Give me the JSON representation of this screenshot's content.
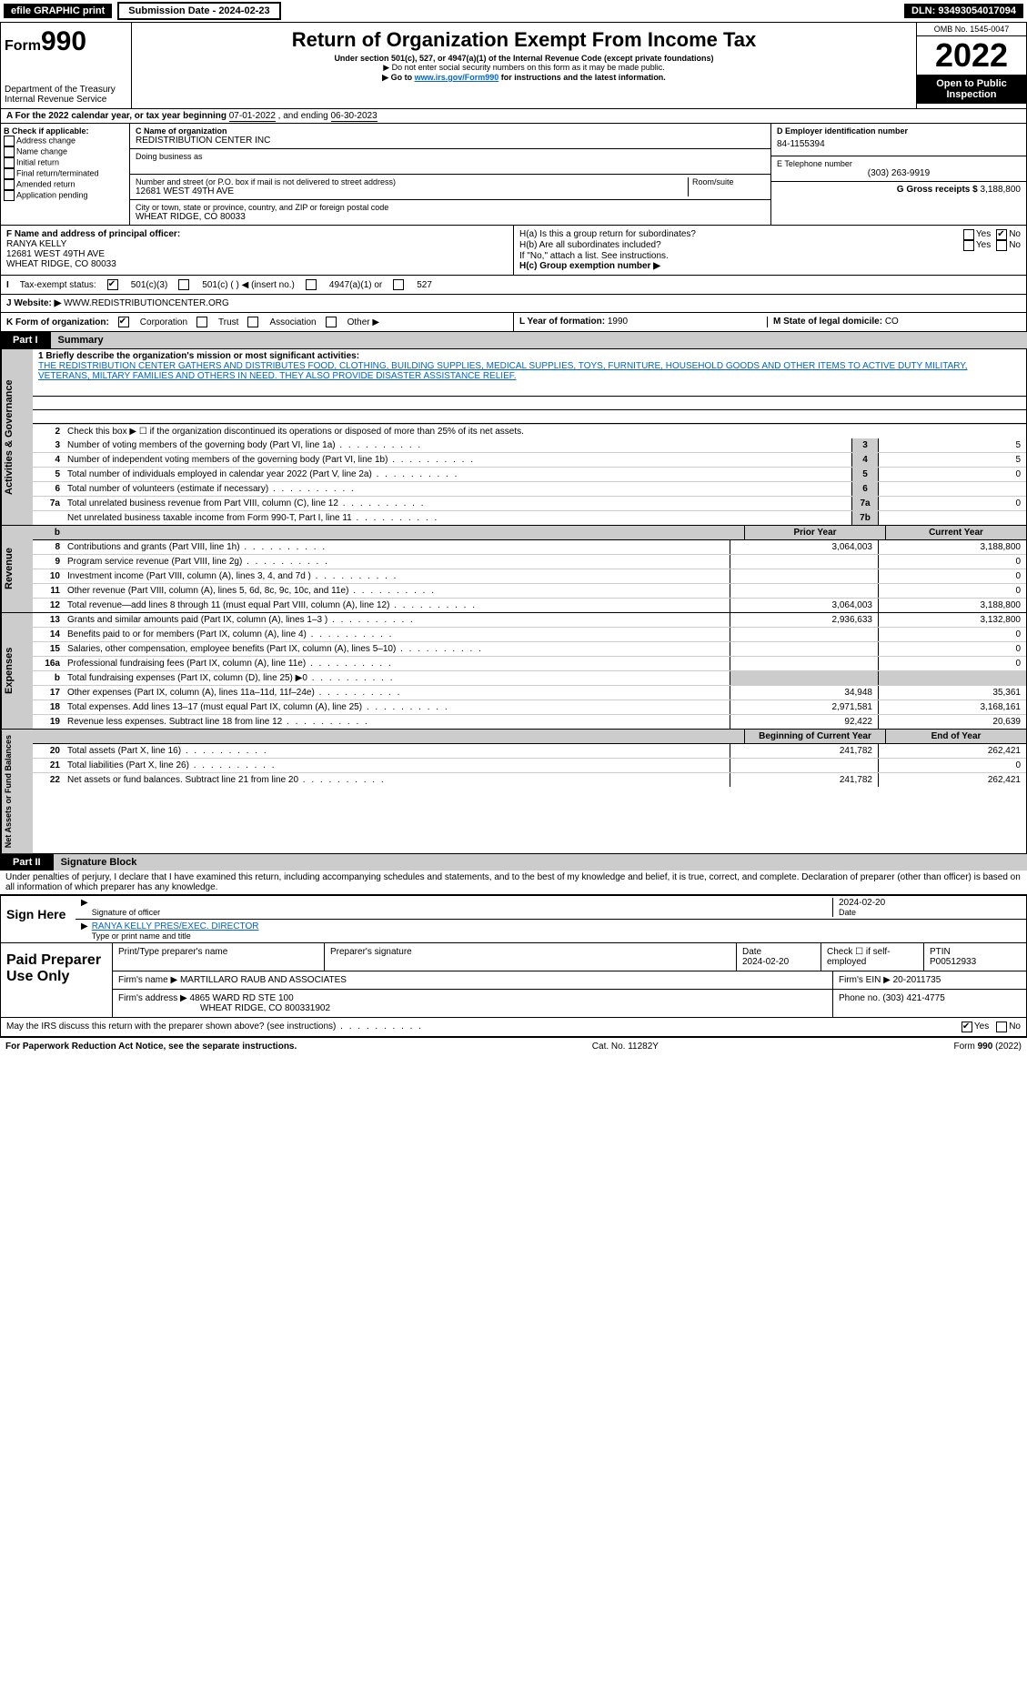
{
  "topbar": {
    "efile_label": "efile GRAPHIC print",
    "submission_label": "Submission Date - 2024-02-23",
    "dln_label": "DLN: 93493054017094"
  },
  "header": {
    "form_prefix": "Form",
    "form_number": "990",
    "dept_label": "Department of the Treasury",
    "irs_label": "Internal Revenue Service",
    "title": "Return of Organization Exempt From Income Tax",
    "subtitle": "Under section 501(c), 527, or 4947(a)(1) of the Internal Revenue Code (except private foundations)",
    "note1": "▶ Do not enter social security numbers on this form as it may be made public.",
    "note2_prefix": "▶ Go to ",
    "note2_link": "www.irs.gov/Form990",
    "note2_suffix": " for instructions and the latest information.",
    "omb": "OMB No. 1545-0047",
    "year": "2022",
    "open_public": "Open to Public Inspection"
  },
  "line_a": {
    "text_prefix": "A For the 2022 calendar year, or tax year beginning ",
    "begin": "07-01-2022",
    "mid": " , and ending ",
    "end": "06-30-2023"
  },
  "col_b": {
    "title": "B Check if applicable:",
    "items": [
      "Address change",
      "Name change",
      "Initial return",
      "Final return/terminated",
      "Amended return",
      "Application pending"
    ]
  },
  "col_c": {
    "name_label": "C Name of organization",
    "name": "REDISTRIBUTION CENTER INC",
    "dba_label": "Doing business as",
    "addr_label": "Number and street (or P.O. box if mail is not delivered to street address)",
    "room_label": "Room/suite",
    "addr": "12681 WEST 49TH AVE",
    "city_label": "City or town, state or province, country, and ZIP or foreign postal code",
    "city": "WHEAT RIDGE, CO  80033"
  },
  "col_d": {
    "ein_label": "D Employer identification number",
    "ein": "84-1155394",
    "phone_label": "E Telephone number",
    "phone": "(303) 263-9919",
    "gross_label": "G Gross receipts $",
    "gross": "3,188,800"
  },
  "fh": {
    "f_label": "F Name and address of principal officer:",
    "f_name": "RANYA KELLY",
    "f_addr1": "12681 WEST 49TH AVE",
    "f_addr2": "WHEAT RIDGE, CO  80033",
    "ha_label": "H(a) Is this a group return for subordinates?",
    "hb_label": "H(b) Are all subordinates included?",
    "h_note": "If \"No,\" attach a list. See instructions.",
    "hc_label": "H(c) Group exemption number ▶",
    "yes": "Yes",
    "no": "No"
  },
  "tax_status": {
    "label": "Tax-exempt status:",
    "c3": "501(c)(3)",
    "c_other": "501(c) (  ) ◀ (insert no.)",
    "a1": "4947(a)(1) or",
    "s527": "527"
  },
  "website": {
    "label": "J    Website: ▶",
    "value": "WWW.REDISTRIBUTIONCENTER.ORG"
  },
  "kl": {
    "k_label": "K Form of organization:",
    "k_corp": "Corporation",
    "k_trust": "Trust",
    "k_assoc": "Association",
    "k_other": "Other ▶",
    "l_label": "L Year of formation:",
    "l_val": "1990",
    "m_label": "M State of legal domicile:",
    "m_val": "CO"
  },
  "part1": {
    "tab": "Part I",
    "title": "Summary",
    "side_gov": "Activities & Governance",
    "side_rev": "Revenue",
    "side_exp": "Expenses",
    "side_net": "Net Assets or Fund Balances",
    "l1_label": "1 Briefly describe the organization's mission or most significant activities:",
    "mission": "THE REDISTRIBUTION CENTER GATHERS AND DISTRIBUTES FOOD, CLOTHING, BUILDING SUPPLIES, MEDICAL SUPPLIES, TOYS, FURNITURE, HOUSEHOLD GOODS AND OTHER ITEMS TO ACTIVE DUTY MILITARY, VETERANS, MILTARY FAMILIES AND OTHERS IN NEED. THEY ALSO PROVIDE DISASTER ASSISTANCE RELIEF.",
    "l2": "Check this box ▶ ☐ if the organization discontinued its operations or disposed of more than 25% of its net assets.",
    "gov_lines": [
      {
        "n": "3",
        "t": "Number of voting members of the governing body (Part VI, line 1a)",
        "box": "3",
        "v": "5"
      },
      {
        "n": "4",
        "t": "Number of independent voting members of the governing body (Part VI, line 1b)",
        "box": "4",
        "v": "5"
      },
      {
        "n": "5",
        "t": "Total number of individuals employed in calendar year 2022 (Part V, line 2a)",
        "box": "5",
        "v": "0"
      },
      {
        "n": "6",
        "t": "Total number of volunteers (estimate if necessary)",
        "box": "6",
        "v": ""
      },
      {
        "n": "7a",
        "t": "Total unrelated business revenue from Part VIII, column (C), line 12",
        "box": "7a",
        "v": "0"
      },
      {
        "n": "",
        "t": "Net unrelated business taxable income from Form 990-T, Part I, line 11",
        "box": "7b",
        "v": ""
      }
    ],
    "prior_hdr": "Prior Year",
    "curr_hdr": "Current Year",
    "beg_hdr": "Beginning of Current Year",
    "end_hdr": "End of Year",
    "rev_lines": [
      {
        "n": "8",
        "t": "Contributions and grants (Part VIII, line 1h)",
        "p": "3,064,003",
        "c": "3,188,800"
      },
      {
        "n": "9",
        "t": "Program service revenue (Part VIII, line 2g)",
        "p": "",
        "c": "0"
      },
      {
        "n": "10",
        "t": "Investment income (Part VIII, column (A), lines 3, 4, and 7d )",
        "p": "",
        "c": "0"
      },
      {
        "n": "11",
        "t": "Other revenue (Part VIII, column (A), lines 5, 6d, 8c, 9c, 10c, and 11e)",
        "p": "",
        "c": "0"
      },
      {
        "n": "12",
        "t": "Total revenue—add lines 8 through 11 (must equal Part VIII, column (A), line 12)",
        "p": "3,064,003",
        "c": "3,188,800"
      }
    ],
    "exp_lines": [
      {
        "n": "13",
        "t": "Grants and similar amounts paid (Part IX, column (A), lines 1–3 )",
        "p": "2,936,633",
        "c": "3,132,800"
      },
      {
        "n": "14",
        "t": "Benefits paid to or for members (Part IX, column (A), line 4)",
        "p": "",
        "c": "0"
      },
      {
        "n": "15",
        "t": "Salaries, other compensation, employee benefits (Part IX, column (A), lines 5–10)",
        "p": "",
        "c": "0"
      },
      {
        "n": "16a",
        "t": "Professional fundraising fees (Part IX, column (A), line 11e)",
        "p": "",
        "c": "0"
      },
      {
        "n": "b",
        "t": "Total fundraising expenses (Part IX, column (D), line 25) ▶0",
        "p": "",
        "c": "",
        "grey": true
      },
      {
        "n": "17",
        "t": "Other expenses (Part IX, column (A), lines 11a–11d, 11f–24e)",
        "p": "34,948",
        "c": "35,361"
      },
      {
        "n": "18",
        "t": "Total expenses. Add lines 13–17 (must equal Part IX, column (A), line 25)",
        "p": "2,971,581",
        "c": "3,168,161"
      },
      {
        "n": "19",
        "t": "Revenue less expenses. Subtract line 18 from line 12",
        "p": "92,422",
        "c": "20,639"
      }
    ],
    "net_lines": [
      {
        "n": "20",
        "t": "Total assets (Part X, line 16)",
        "p": "241,782",
        "c": "262,421"
      },
      {
        "n": "21",
        "t": "Total liabilities (Part X, line 26)",
        "p": "",
        "c": "0"
      },
      {
        "n": "22",
        "t": "Net assets or fund balances. Subtract line 21 from line 20",
        "p": "241,782",
        "c": "262,421"
      }
    ]
  },
  "part2": {
    "tab": "Part II",
    "title": "Signature Block",
    "decl": "Under penalties of perjury, I declare that I have examined this return, including accompanying schedules and statements, and to the best of my knowledge and belief, it is true, correct, and complete. Declaration of preparer (other than officer) is based on all information of which preparer has any knowledge.",
    "sign_here": "Sign Here",
    "sig_officer": "Signature of officer",
    "sig_date": "Date",
    "sig_date_val": "2024-02-20",
    "officer_name": "RANYA KELLY PRES/EXEC. DIRECTOR",
    "type_name": "Type or print name and title",
    "paid_prep": "Paid Preparer Use Only",
    "prep_name_hdr": "Print/Type preparer's name",
    "prep_sig_hdr": "Preparer's signature",
    "prep_date_hdr": "Date",
    "prep_date": "2024-02-20",
    "prep_check": "Check ☐ if self-employed",
    "ptin_hdr": "PTIN",
    "ptin": "P00512933",
    "firm_name_lbl": "Firm's name    ▶",
    "firm_name": "MARTILLARO RAUB AND ASSOCIATES",
    "firm_ein_lbl": "Firm's EIN ▶",
    "firm_ein": "20-2011735",
    "firm_addr_lbl": "Firm's address ▶",
    "firm_addr1": "4865 WARD RD STE 100",
    "firm_addr2": "WHEAT RIDGE, CO  800331902",
    "firm_phone_lbl": "Phone no.",
    "firm_phone": "(303) 421-4775",
    "may_irs": "May the IRS discuss this return with the preparer shown above? (see instructions)",
    "yes": "Yes",
    "no": "No"
  },
  "footer": {
    "left": "For Paperwork Reduction Act Notice, see the separate instructions.",
    "mid": "Cat. No. 11282Y",
    "right": "Form 990 (2022)"
  }
}
